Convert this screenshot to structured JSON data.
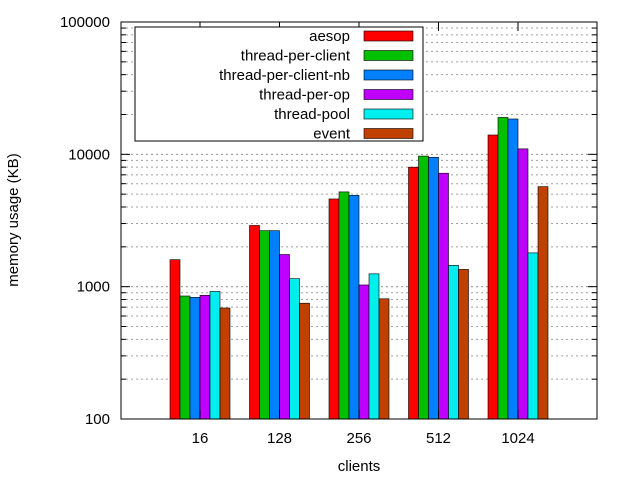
{
  "chart_data": {
    "type": "bar",
    "title": "",
    "xlabel": "clients",
    "ylabel": "memory usage (KB)",
    "yscale": "log",
    "ylim": [
      100,
      100000
    ],
    "yticks": [
      {
        "value": 100,
        "label": "100"
      },
      {
        "value": 1000,
        "label": "1000"
      },
      {
        "value": 10000,
        "label": "10000"
      },
      {
        "value": 100000,
        "label": "100000"
      }
    ],
    "grid": "horizontal dotted at log minor ticks",
    "legend_position": "top-left",
    "categories": [
      "16",
      "128",
      "256",
      "512",
      "1024"
    ],
    "series": [
      {
        "name": "aesop",
        "color": "#ff0000",
        "values": [
          1600,
          2900,
          4600,
          8000,
          14000
        ]
      },
      {
        "name": "thread-per-client",
        "color": "#00c000",
        "values": [
          850,
          2650,
          5200,
          9700,
          19000
        ]
      },
      {
        "name": "thread-per-client-nb",
        "color": "#0080ff",
        "values": [
          830,
          2650,
          4900,
          9500,
          18500
        ]
      },
      {
        "name": "thread-per-op",
        "color": "#c000ff",
        "values": [
          860,
          1750,
          1030,
          7200,
          11000
        ]
      },
      {
        "name": "thread-pool",
        "color": "#00eeee",
        "values": [
          920,
          1150,
          1250,
          1450,
          1800
        ]
      },
      {
        "name": "event",
        "color": "#c04000",
        "values": [
          690,
          750,
          810,
          1350,
          5700
        ]
      }
    ]
  }
}
